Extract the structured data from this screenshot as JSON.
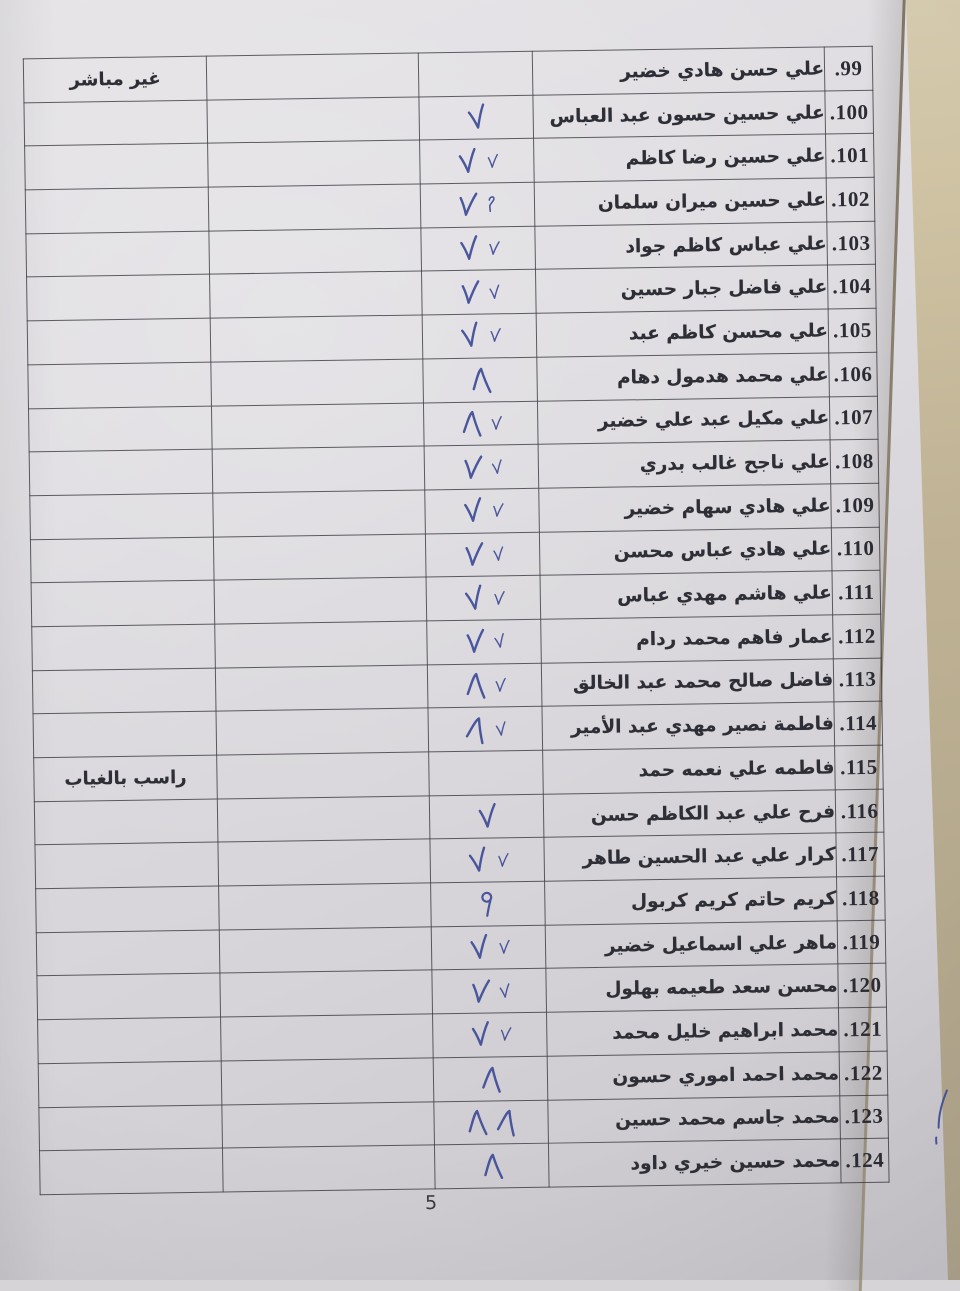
{
  "page": {
    "number_label": "5"
  },
  "ink_color": "#3d4b97",
  "table": {
    "rows": [
      {
        "no": "99.",
        "name": "علي حسن هادي خضير",
        "marks": [],
        "note": "غير مباشر"
      },
      {
        "no": "100.",
        "name": "علي حسين حسون عبد العباس",
        "marks": [
          "v"
        ],
        "note": ""
      },
      {
        "no": "101.",
        "name": "علي حسين رضا كاظم",
        "marks": [
          "vs",
          "v"
        ],
        "note": ""
      },
      {
        "no": "102.",
        "name": "علي حسين ميران سلمان",
        "marks": [
          "two",
          "v"
        ],
        "note": ""
      },
      {
        "no": "103.",
        "name": "علي عباس كاظم جواد",
        "marks": [
          "vs",
          "v"
        ],
        "note": ""
      },
      {
        "no": "104.",
        "name": "علي فاضل جبار حسين",
        "marks": [
          "vs",
          "v"
        ],
        "note": ""
      },
      {
        "no": "105.",
        "name": "علي محسن كاظم عبد",
        "marks": [
          "vs",
          "v"
        ],
        "note": ""
      },
      {
        "no": "106.",
        "name": "علي محمد هدمول دهام",
        "marks": [
          "seven"
        ],
        "note": ""
      },
      {
        "no": "107.",
        "name": "علي مكيل عبد علي خضير",
        "marks": [
          "vs",
          "seven"
        ],
        "note": ""
      },
      {
        "no": "108.",
        "name": "علي ناجح غالب بدري",
        "marks": [
          "vs",
          "v"
        ],
        "note": ""
      },
      {
        "no": "109.",
        "name": "علي هادي سهام خضير",
        "marks": [
          "vs",
          "v"
        ],
        "note": ""
      },
      {
        "no": "110.",
        "name": "علي هادي عباس محسن",
        "marks": [
          "vs",
          "v"
        ],
        "note": ""
      },
      {
        "no": "111.",
        "name": "علي هاشم مهدي عباس",
        "marks": [
          "vs",
          "v"
        ],
        "note": ""
      },
      {
        "no": "112.",
        "name": "عمار فاهم محمد ردام",
        "marks": [
          "vs",
          "v"
        ],
        "note": ""
      },
      {
        "no": "113.",
        "name": "فاضل صالح محمد عبد الخالق",
        "marks": [
          "vs",
          "seven"
        ],
        "note": ""
      },
      {
        "no": "114.",
        "name": "فاطمة نصير مهدي عبد الأمير",
        "marks": [
          "vs",
          "seven"
        ],
        "note": ""
      },
      {
        "no": "115.",
        "name": "فاطمه علي نعمه حمد",
        "marks": [],
        "note": "راسب بالغياب"
      },
      {
        "no": "116.",
        "name": "فرح علي عبد الكاظم حسن",
        "marks": [
          "v"
        ],
        "note": ""
      },
      {
        "no": "117.",
        "name": "كرار علي عبد الحسين طاهر",
        "marks": [
          "vs",
          "v"
        ],
        "note": ""
      },
      {
        "no": "118.",
        "name": "كريم حاتم كريم كربول",
        "marks": [
          "nine"
        ],
        "note": ""
      },
      {
        "no": "119.",
        "name": "ماهر علي اسماعيل خضير",
        "marks": [
          "vs",
          "v"
        ],
        "note": ""
      },
      {
        "no": "120.",
        "name": "محسن سعد طعيمه بهلول",
        "marks": [
          "vs",
          "v"
        ],
        "note": ""
      },
      {
        "no": "121.",
        "name": "محمد ابراهيم خليل محمد",
        "marks": [
          "vs",
          "v"
        ],
        "note": ""
      },
      {
        "no": "122.",
        "name": "محمد احمد اموري حسون",
        "marks": [
          "seven"
        ],
        "note": ""
      },
      {
        "no": "123.",
        "name": "محمد جاسم محمد حسين",
        "marks": [
          "seven",
          "seven"
        ],
        "note": ""
      },
      {
        "no": "124.",
        "name": "محمد حسين خيري داود",
        "marks": [
          "seven"
        ],
        "note": ""
      }
    ]
  }
}
